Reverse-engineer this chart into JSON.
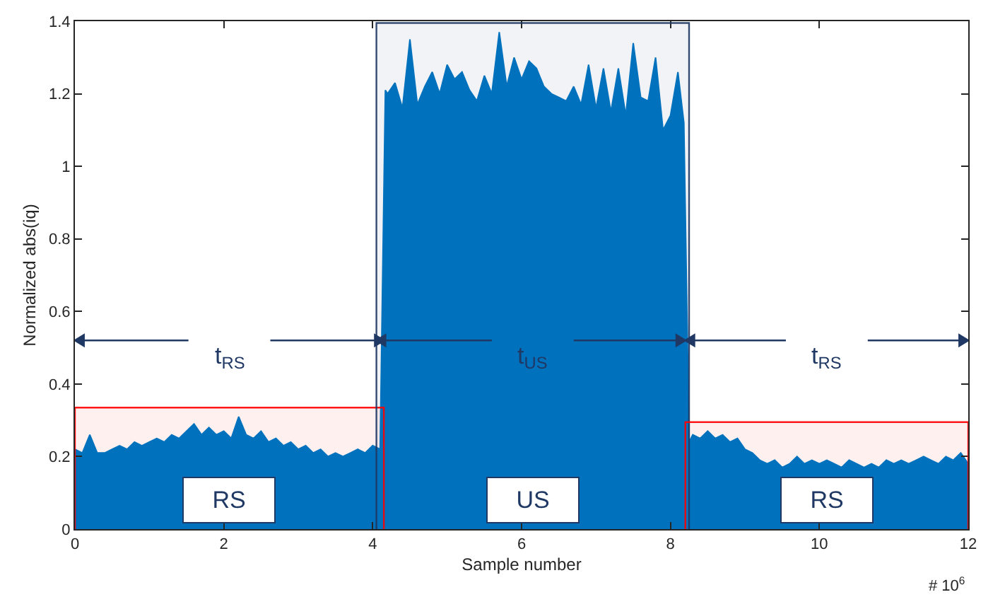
{
  "chart_data": {
    "type": "area",
    "xlabel": "Sample number",
    "ylabel": "Normalized abs(iq)",
    "x": [
      0,
      0.1,
      0.2,
      0.3,
      0.4,
      0.5,
      0.6,
      0.7,
      0.8,
      0.9,
      1.0,
      1.1,
      1.2,
      1.3,
      1.4,
      1.5,
      1.6,
      1.7,
      1.8,
      1.9,
      2.0,
      2.1,
      2.2,
      2.3,
      2.4,
      2.5,
      2.6,
      2.7,
      2.8,
      2.9,
      3.0,
      3.1,
      3.2,
      3.3,
      3.4,
      3.5,
      3.6,
      3.7,
      3.8,
      3.9,
      4.0,
      4.1,
      4.17,
      4.2,
      4.3,
      4.4,
      4.5,
      4.6,
      4.7,
      4.8,
      4.9,
      5.0,
      5.1,
      5.2,
      5.3,
      5.4,
      5.5,
      5.6,
      5.7,
      5.8,
      5.9,
      6.0,
      6.1,
      6.2,
      6.3,
      6.4,
      6.5,
      6.6,
      6.7,
      6.8,
      6.9,
      7.0,
      7.1,
      7.2,
      7.3,
      7.4,
      7.5,
      7.6,
      7.7,
      7.8,
      7.9,
      8.0,
      8.1,
      8.18,
      8.25,
      8.3,
      8.4,
      8.5,
      8.6,
      8.7,
      8.8,
      8.9,
      9.0,
      9.1,
      9.2,
      9.3,
      9.4,
      9.5,
      9.6,
      9.7,
      9.8,
      9.9,
      10.0,
      10.1,
      10.2,
      10.3,
      10.4,
      10.5,
      10.6,
      10.7,
      10.8,
      10.9,
      11.0,
      11.1,
      11.2,
      11.3,
      11.4,
      11.5,
      11.6,
      11.7,
      11.8,
      11.9,
      12.0
    ],
    "series": [
      {
        "color": "#0072bd",
        "values": [
          0.22,
          0.21,
          0.26,
          0.21,
          0.21,
          0.22,
          0.23,
          0.22,
          0.24,
          0.23,
          0.24,
          0.25,
          0.24,
          0.26,
          0.25,
          0.27,
          0.29,
          0.26,
          0.28,
          0.26,
          0.27,
          0.25,
          0.31,
          0.26,
          0.25,
          0.27,
          0.24,
          0.25,
          0.23,
          0.24,
          0.22,
          0.23,
          0.21,
          0.22,
          0.2,
          0.21,
          0.2,
          0.21,
          0.22,
          0.21,
          0.23,
          0.22,
          1.21,
          1.2,
          1.23,
          1.16,
          1.35,
          1.17,
          1.22,
          1.26,
          1.2,
          1.28,
          1.24,
          1.26,
          1.21,
          1.18,
          1.25,
          1.2,
          1.37,
          1.22,
          1.3,
          1.24,
          1.29,
          1.27,
          1.22,
          1.2,
          1.19,
          1.18,
          1.22,
          1.17,
          1.28,
          1.16,
          1.27,
          1.15,
          1.27,
          1.14,
          1.34,
          1.19,
          1.18,
          1.3,
          1.1,
          1.14,
          1.26,
          1.12,
          0.24,
          0.26,
          0.25,
          0.27,
          0.25,
          0.26,
          0.24,
          0.25,
          0.22,
          0.21,
          0.19,
          0.18,
          0.19,
          0.17,
          0.18,
          0.2,
          0.18,
          0.19,
          0.18,
          0.19,
          0.18,
          0.17,
          0.19,
          0.18,
          0.17,
          0.18,
          0.17,
          0.19,
          0.18,
          0.19,
          0.18,
          0.19,
          0.2,
          0.19,
          0.18,
          0.2,
          0.19,
          0.21,
          0.18
        ]
      }
    ],
    "xlim": [
      0,
      12
    ],
    "xticks": [
      0,
      2,
      4,
      6,
      8,
      10,
      12
    ],
    "ylim": [
      0,
      1.4
    ],
    "yticks": [
      0,
      0.2,
      0.4,
      0.6,
      0.8,
      1,
      1.2,
      1.4
    ],
    "grid": false,
    "bands": [
      {
        "axis": "x",
        "from": 0,
        "to": 4.15,
        "label": "RS",
        "color": "#ff0000"
      },
      {
        "axis": "x",
        "from": 4.05,
        "to": 8.25,
        "label": "US",
        "color": "#1f3864"
      },
      {
        "axis": "x",
        "from": 8.2,
        "to": 12,
        "label": "RS",
        "color": "#ff0000"
      }
    ],
    "annotations": [
      "t$_{RS}$",
      {
        "text": "t$_{US}$",
        "x": 8.2,
        "y": 0.52
      },
      {
        "text": "t$_{RS}$",
        "x": 8.2,
        "y": 0.52
      },
      "# 10$^{6}$"
    ]
  }
}
